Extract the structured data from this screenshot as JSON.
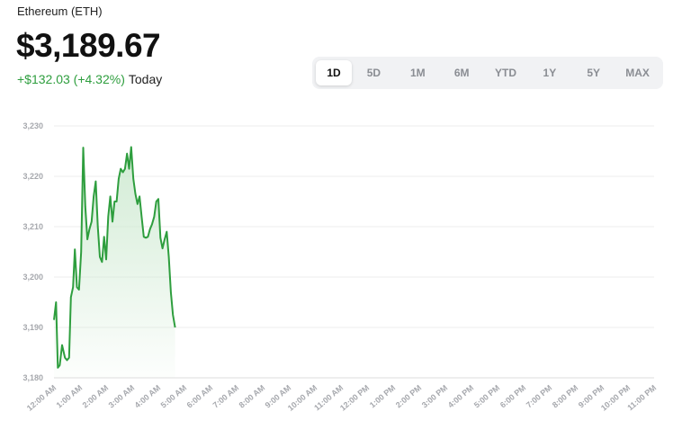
{
  "header": {
    "asset_name": "Ethereum (ETH)",
    "price": "$3,189.67",
    "change": "+$132.03 (+4.32%)",
    "period": "Today"
  },
  "range_tabs": [
    {
      "label": "1D",
      "active": true
    },
    {
      "label": "5D",
      "active": false
    },
    {
      "label": "1M",
      "active": false
    },
    {
      "label": "6M",
      "active": false
    },
    {
      "label": "YTD",
      "active": false
    },
    {
      "label": "1Y",
      "active": false
    },
    {
      "label": "5Y",
      "active": false
    },
    {
      "label": "MAX",
      "active": false
    }
  ],
  "colors": {
    "line": "#2e9e3e",
    "fill": "#cfead2",
    "grid": "#ececec",
    "axis": "#dcdcdc"
  },
  "chart_data": {
    "type": "area",
    "title": "",
    "xlabel": "",
    "ylabel": "",
    "ylim": [
      3180,
      3230
    ],
    "y_ticks": [
      3180,
      3190,
      3200,
      3210,
      3220,
      3230
    ],
    "y_tick_labels": [
      "3,180",
      "3,190",
      "3,200",
      "3,210",
      "3,220",
      "3,230"
    ],
    "x_ticks": [
      0,
      1,
      2,
      3,
      4,
      5,
      6,
      7,
      8,
      9,
      10,
      11,
      12,
      13,
      14,
      15,
      16,
      17,
      18,
      19,
      20,
      21,
      22,
      23
    ],
    "x_tick_labels": [
      "12:00 AM",
      "1:00 AM",
      "2:00 AM",
      "3:00 AM",
      "4:00 AM",
      "5:00 AM",
      "6:00 AM",
      "7:00 AM",
      "8:00 AM",
      "9:00 AM",
      "10:00 AM",
      "11:00 AM",
      "12:00 PM",
      "1:00 PM",
      "2:00 PM",
      "3:00 PM",
      "4:00 PM",
      "5:00 PM",
      "6:00 PM",
      "7:00 PM",
      "8:00 PM",
      "9:00 PM",
      "10:00 PM",
      "11:00 PM"
    ],
    "xlim": [
      0,
      23
    ],
    "grid": true,
    "series": [
      {
        "values": [
          [
            0.0,
            3191.5
          ],
          [
            0.08,
            3195.0
          ],
          [
            0.15,
            3182.0
          ],
          [
            0.22,
            3182.5
          ],
          [
            0.31,
            3186.5
          ],
          [
            0.42,
            3184.0
          ],
          [
            0.5,
            3183.5
          ],
          [
            0.58,
            3184.0
          ],
          [
            0.65,
            3196.0
          ],
          [
            0.73,
            3198.0
          ],
          [
            0.8,
            3205.5
          ],
          [
            0.88,
            3198.0
          ],
          [
            0.96,
            3197.5
          ],
          [
            1.04,
            3205.0
          ],
          [
            1.12,
            3225.7
          ],
          [
            1.2,
            3214.0
          ],
          [
            1.28,
            3207.5
          ],
          [
            1.36,
            3209.5
          ],
          [
            1.44,
            3211.0
          ],
          [
            1.52,
            3216.0
          ],
          [
            1.6,
            3219.0
          ],
          [
            1.68,
            3210.0
          ],
          [
            1.76,
            3204.0
          ],
          [
            1.84,
            3203.0
          ],
          [
            1.92,
            3208.0
          ],
          [
            2.0,
            3203.5
          ],
          [
            2.08,
            3212.0
          ],
          [
            2.16,
            3216.0
          ],
          [
            2.24,
            3211.0
          ],
          [
            2.32,
            3215.0
          ],
          [
            2.4,
            3215.0
          ],
          [
            2.48,
            3219.5
          ],
          [
            2.56,
            3221.5
          ],
          [
            2.64,
            3220.8
          ],
          [
            2.72,
            3221.5
          ],
          [
            2.8,
            3224.5
          ],
          [
            2.88,
            3221.5
          ],
          [
            2.96,
            3225.8
          ],
          [
            3.04,
            3219.5
          ],
          [
            3.12,
            3216.5
          ],
          [
            3.2,
            3214.5
          ],
          [
            3.28,
            3216.0
          ],
          [
            3.36,
            3212.0
          ],
          [
            3.44,
            3208.0
          ],
          [
            3.52,
            3207.8
          ],
          [
            3.6,
            3208.0
          ],
          [
            3.68,
            3209.5
          ],
          [
            3.76,
            3210.5
          ],
          [
            3.84,
            3212.0
          ],
          [
            3.92,
            3215.0
          ],
          [
            4.0,
            3215.5
          ],
          [
            4.08,
            3207.8
          ],
          [
            4.16,
            3205.7
          ],
          [
            4.24,
            3207.5
          ],
          [
            4.32,
            3209.0
          ],
          [
            4.4,
            3204.0
          ],
          [
            4.48,
            3197.0
          ],
          [
            4.56,
            3192.5
          ],
          [
            4.64,
            3190.0
          ]
        ]
      }
    ]
  }
}
